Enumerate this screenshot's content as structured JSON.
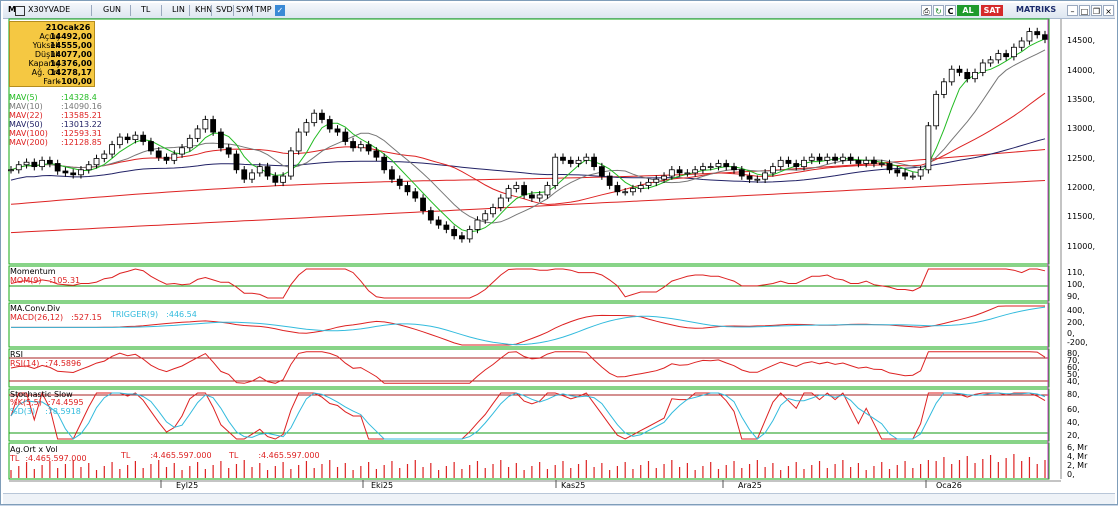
{
  "toolbar": {
    "symbol_prefix": "M",
    "symbol": "X30YVADE",
    "items": [
      "GUN",
      "TL",
      "LIN",
      "KHN",
      "SVD",
      "SYM",
      "TMP"
    ],
    "buy_label": "AL",
    "sell_label": "SAT",
    "brand": "MATRIKS"
  },
  "info_box": {
    "date": "21Ocak26",
    "rows": [
      {
        "k": "Açılış",
        "v": "14492,00"
      },
      {
        "k": "Yüksek",
        "v": "14555,00"
      },
      {
        "k": "Düşük",
        "v": "14077,00"
      },
      {
        "k": "Kapanış",
        "v": "14376,00"
      },
      {
        "k": "Ağ. Ort",
        "v": "14278,17"
      },
      {
        "k": "Fark",
        "v": "-100,00"
      }
    ]
  },
  "moving_averages": [
    {
      "name": "MAV(5)",
      "value": ":14328.4",
      "color": "#22bb22"
    },
    {
      "name": "MAV(10)",
      "value": ":14090.16",
      "color": "#777777"
    },
    {
      "name": "MAV(22)",
      "value": ":13585.21",
      "color": "#dd2222"
    },
    {
      "name": "MAV(50)",
      "value": ":13013.22",
      "color": "#222266"
    },
    {
      "name": "MAV(100)",
      "value": ":12593.31",
      "color": "#dd2222"
    },
    {
      "name": "MAV(200)",
      "value": ":12128.85",
      "color": "#dd2222"
    }
  ],
  "price_axis": [
    "14500,",
    "14000,",
    "13500,",
    "13000,",
    "12500,",
    "12000,",
    "11500,",
    "11000,"
  ],
  "momentum": {
    "title": "Momentum",
    "label": "MOM(9)",
    "value": ":105.31",
    "axis": [
      "110,",
      "100,",
      "90,"
    ]
  },
  "macd": {
    "title": "MA.Conv.Div",
    "label": "MACD(26,12)",
    "value": ":527.15",
    "trigger_label": "TRIGGER(9)",
    "trigger_value": ":446.54",
    "axis": [
      "400,",
      "200,",
      "0,",
      "-200,"
    ]
  },
  "rsi": {
    "title": "RSI",
    "label": "RSI(14)",
    "value": ":74.5896",
    "axis": [
      "80,",
      "70,",
      "60,",
      "50,",
      "40,"
    ]
  },
  "stochastic": {
    "title": "Stochastic Slow",
    "k_label": "%K(5,5)",
    "k_value": ":74.4595",
    "d_label": "%D(3)",
    "d_value": ":78.5918",
    "axis": [
      "80,",
      "60,",
      "40,",
      "20,"
    ]
  },
  "volume": {
    "title": "Ag.Ort x Vol",
    "entries": [
      {
        "label": "TL",
        "value": ":4.465.597.000"
      },
      {
        "label": "TL",
        "value": ":4.465.597.000"
      },
      {
        "label": "TL",
        "value": ":4.465.597.000"
      }
    ],
    "axis": [
      "6, Mr",
      "4, Mr",
      "2, Mr",
      "0,"
    ]
  },
  "date_axis": [
    "Eyl25",
    "Eki25",
    "Kas25",
    "Ara25",
    "Oca26"
  ],
  "colors": {
    "up_candle": "#ffffff",
    "down_candle": "#000000",
    "momentum": "#dd2222",
    "macd": "#dd2222",
    "trigger": "#33bbdd",
    "rsi": "#dd2222",
    "stoch_k": "#dd2222",
    "stoch_d": "#33bbdd",
    "volume": "#dd2222",
    "cursor": "#cc33cc",
    "ref_line": "#119911"
  },
  "chart_data": {
    "type": "candlestick",
    "close_series": [
      12300,
      12380,
      12420,
      12350,
      12450,
      12400,
      12280,
      12250,
      12220,
      12300,
      12380,
      12480,
      12550,
      12700,
      12820,
      12780,
      12850,
      12750,
      12600,
      12500,
      12450,
      12550,
      12650,
      12800,
      12950,
      13100,
      12900,
      12650,
      12550,
      12300,
      12150,
      12250,
      12350,
      12200,
      12100,
      12200,
      12600,
      12900,
      13050,
      13200,
      13100,
      12950,
      12900,
      12750,
      12650,
      12700,
      12600,
      12500,
      12300,
      12150,
      12050,
      11950,
      11850,
      11650,
      11500,
      11420,
      11350,
      11250,
      11200,
      11350,
      11500,
      11600,
      11700,
      11850,
      12000,
      12050,
      11900,
      11850,
      11900,
      12050,
      12500,
      12450,
      12400,
      12450,
      12500,
      12350,
      12200,
      12050,
      11950,
      11950,
      12000,
      12050,
      12100,
      12150,
      12200,
      12300,
      12250,
      12250,
      12300,
      12350,
      12350,
      12400,
      12350,
      12300,
      12200,
      12150,
      12150,
      12250,
      12350,
      12450,
      12400,
      12350,
      12450,
      12500,
      12450,
      12500,
      12450,
      12500,
      12450,
      12400,
      12450,
      12400,
      12400,
      12300,
      12250,
      12200,
      12200,
      12300,
      13000,
      13500,
      13700,
      13900,
      13850,
      13750,
      13850,
      14000,
      14050,
      14150,
      14100,
      14250,
      14350,
      14500,
      14450,
      14376
    ],
    "ma5_last": 14328.4,
    "ma10_last": 14090.16,
    "ma22_last": 13585.21,
    "ma50_last": 13013.22,
    "ma100_last": 12593.31,
    "ma200_last": 12128.85,
    "ylim": [
      10800,
      14700
    ]
  }
}
